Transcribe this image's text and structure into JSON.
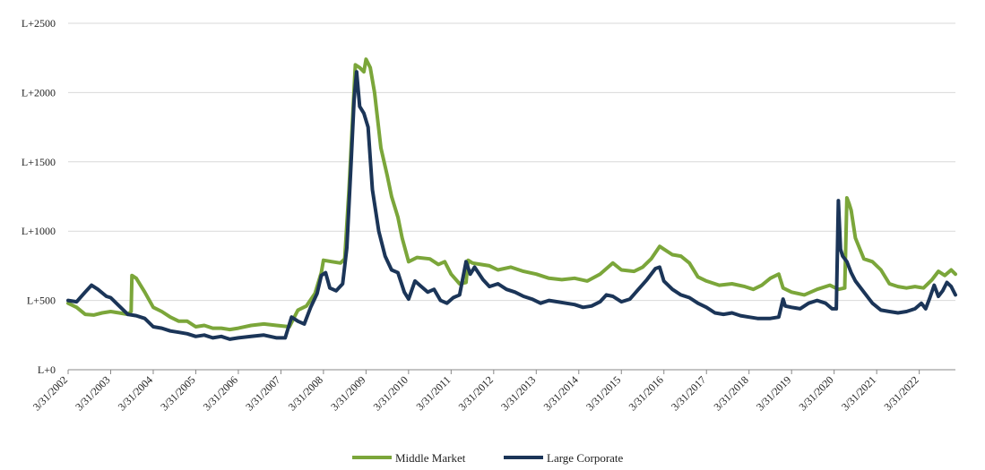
{
  "chart_data": {
    "type": "line",
    "title": "",
    "xlabel": "",
    "ylabel": "",
    "ylim": [
      0,
      2500
    ],
    "y_ticks": [
      {
        "value": 0,
        "label": "L+0"
      },
      {
        "value": 500,
        "label": "L+500"
      },
      {
        "value": 1000,
        "label": "L+1000"
      },
      {
        "value": 1500,
        "label": "L+1500"
      },
      {
        "value": 2000,
        "label": "L+2000"
      },
      {
        "value": 2500,
        "label": "L+2500"
      }
    ],
    "xlim": [
      2002.0,
      2022.85
    ],
    "x_tick_labels": [
      "3/31/2002",
      "3/31/2003",
      "3/31/2004",
      "3/31/2005",
      "3/31/2006",
      "3/31/2007",
      "3/31/2008",
      "3/31/2009",
      "3/31/2010",
      "3/31/2011",
      "3/31/2012",
      "3/31/2013",
      "3/31/2014",
      "3/31/2015",
      "3/31/2016",
      "3/31/2017",
      "3/31/2018",
      "3/31/2019",
      "3/31/2020",
      "3/31/2021",
      "3/31/2022"
    ],
    "grid": true,
    "legend": "bottom-center",
    "series": [
      {
        "name": "Middle Market",
        "color": "#7ba63a",
        "points": [
          [
            2002.0,
            480
          ],
          [
            2002.2,
            450
          ],
          [
            2002.4,
            400
          ],
          [
            2002.6,
            395
          ],
          [
            2002.8,
            410
          ],
          [
            2003.0,
            420
          ],
          [
            2003.2,
            410
          ],
          [
            2003.4,
            400
          ],
          [
            2003.48,
            420
          ],
          [
            2003.5,
            680
          ],
          [
            2003.6,
            660
          ],
          [
            2003.8,
            560
          ],
          [
            2004.0,
            450
          ],
          [
            2004.2,
            420
          ],
          [
            2004.4,
            380
          ],
          [
            2004.6,
            350
          ],
          [
            2004.8,
            350
          ],
          [
            2005.0,
            310
          ],
          [
            2005.2,
            320
          ],
          [
            2005.4,
            300
          ],
          [
            2005.6,
            300
          ],
          [
            2005.8,
            290
          ],
          [
            2006.0,
            300
          ],
          [
            2006.3,
            320
          ],
          [
            2006.6,
            330
          ],
          [
            2006.9,
            320
          ],
          [
            2007.2,
            310
          ],
          [
            2007.4,
            430
          ],
          [
            2007.6,
            460
          ],
          [
            2007.8,
            550
          ],
          [
            2007.95,
            700
          ],
          [
            2008.0,
            790
          ],
          [
            2008.2,
            780
          ],
          [
            2008.4,
            770
          ],
          [
            2008.5,
            800
          ],
          [
            2008.6,
            1300
          ],
          [
            2008.7,
            1900
          ],
          [
            2008.75,
            2200
          ],
          [
            2008.85,
            2180
          ],
          [
            2008.95,
            2150
          ],
          [
            2009.0,
            2240
          ],
          [
            2009.1,
            2180
          ],
          [
            2009.2,
            2000
          ],
          [
            2009.35,
            1600
          ],
          [
            2009.5,
            1400
          ],
          [
            2009.6,
            1250
          ],
          [
            2009.75,
            1100
          ],
          [
            2009.85,
            950
          ],
          [
            2010.0,
            780
          ],
          [
            2010.2,
            810
          ],
          [
            2010.5,
            800
          ],
          [
            2010.7,
            760
          ],
          [
            2010.85,
            780
          ],
          [
            2011.0,
            690
          ],
          [
            2011.2,
            620
          ],
          [
            2011.35,
            630
          ],
          [
            2011.4,
            790
          ],
          [
            2011.5,
            770
          ],
          [
            2011.7,
            760
          ],
          [
            2011.9,
            750
          ],
          [
            2012.1,
            720
          ],
          [
            2012.4,
            740
          ],
          [
            2012.7,
            710
          ],
          [
            2013.0,
            690
          ],
          [
            2013.3,
            660
          ],
          [
            2013.6,
            650
          ],
          [
            2013.9,
            660
          ],
          [
            2014.2,
            640
          ],
          [
            2014.5,
            690
          ],
          [
            2014.8,
            770
          ],
          [
            2015.0,
            720
          ],
          [
            2015.3,
            710
          ],
          [
            2015.5,
            740
          ],
          [
            2015.7,
            800
          ],
          [
            2015.9,
            890
          ],
          [
            2016.0,
            870
          ],
          [
            2016.2,
            830
          ],
          [
            2016.4,
            820
          ],
          [
            2016.6,
            770
          ],
          [
            2016.8,
            670
          ],
          [
            2017.0,
            640
          ],
          [
            2017.3,
            610
          ],
          [
            2017.6,
            620
          ],
          [
            2017.9,
            600
          ],
          [
            2018.1,
            580
          ],
          [
            2018.3,
            610
          ],
          [
            2018.5,
            660
          ],
          [
            2018.7,
            690
          ],
          [
            2018.8,
            590
          ],
          [
            2019.0,
            560
          ],
          [
            2019.3,
            540
          ],
          [
            2019.6,
            580
          ],
          [
            2019.9,
            610
          ],
          [
            2020.1,
            580
          ],
          [
            2020.25,
            590
          ],
          [
            2020.3,
            1240
          ],
          [
            2020.35,
            1200
          ],
          [
            2020.4,
            1150
          ],
          [
            2020.5,
            950
          ],
          [
            2020.7,
            800
          ],
          [
            2020.9,
            780
          ],
          [
            2021.1,
            720
          ],
          [
            2021.3,
            620
          ],
          [
            2021.5,
            600
          ],
          [
            2021.7,
            590
          ],
          [
            2021.9,
            600
          ],
          [
            2022.1,
            590
          ],
          [
            2022.3,
            650
          ],
          [
            2022.45,
            710
          ],
          [
            2022.6,
            680
          ],
          [
            2022.75,
            720
          ],
          [
            2022.85,
            690
          ]
        ]
      },
      {
        "name": "Large Corporate",
        "color": "#1b3558",
        "points": [
          [
            2002.0,
            500
          ],
          [
            2002.2,
            490
          ],
          [
            2002.4,
            560
          ],
          [
            2002.55,
            610
          ],
          [
            2002.7,
            580
          ],
          [
            2002.9,
            530
          ],
          [
            2003.0,
            520
          ],
          [
            2003.2,
            460
          ],
          [
            2003.4,
            400
          ],
          [
            2003.6,
            390
          ],
          [
            2003.8,
            370
          ],
          [
            2004.0,
            310
          ],
          [
            2004.2,
            300
          ],
          [
            2004.4,
            280
          ],
          [
            2004.6,
            270
          ],
          [
            2004.8,
            260
          ],
          [
            2005.0,
            240
          ],
          [
            2005.2,
            250
          ],
          [
            2005.4,
            230
          ],
          [
            2005.6,
            240
          ],
          [
            2005.8,
            220
          ],
          [
            2006.0,
            230
          ],
          [
            2006.3,
            240
          ],
          [
            2006.6,
            250
          ],
          [
            2006.9,
            230
          ],
          [
            2007.1,
            230
          ],
          [
            2007.25,
            380
          ],
          [
            2007.4,
            350
          ],
          [
            2007.55,
            330
          ],
          [
            2007.7,
            450
          ],
          [
            2007.85,
            550
          ],
          [
            2007.95,
            680
          ],
          [
            2008.05,
            700
          ],
          [
            2008.15,
            590
          ],
          [
            2008.3,
            570
          ],
          [
            2008.45,
            620
          ],
          [
            2008.55,
            880
          ],
          [
            2008.65,
            1500
          ],
          [
            2008.72,
            1950
          ],
          [
            2008.78,
            2150
          ],
          [
            2008.85,
            1900
          ],
          [
            2008.95,
            1850
          ],
          [
            2009.05,
            1750
          ],
          [
            2009.15,
            1300
          ],
          [
            2009.3,
            1000
          ],
          [
            2009.45,
            820
          ],
          [
            2009.6,
            720
          ],
          [
            2009.75,
            700
          ],
          [
            2009.9,
            560
          ],
          [
            2010.0,
            510
          ],
          [
            2010.15,
            640
          ],
          [
            2010.3,
            600
          ],
          [
            2010.45,
            560
          ],
          [
            2010.6,
            580
          ],
          [
            2010.75,
            500
          ],
          [
            2010.9,
            480
          ],
          [
            2011.05,
            520
          ],
          [
            2011.2,
            540
          ],
          [
            2011.35,
            780
          ],
          [
            2011.45,
            690
          ],
          [
            2011.55,
            740
          ],
          [
            2011.75,
            650
          ],
          [
            2011.9,
            600
          ],
          [
            2012.1,
            620
          ],
          [
            2012.3,
            580
          ],
          [
            2012.5,
            560
          ],
          [
            2012.7,
            530
          ],
          [
            2012.9,
            510
          ],
          [
            2013.1,
            480
          ],
          [
            2013.3,
            500
          ],
          [
            2013.5,
            490
          ],
          [
            2013.7,
            480
          ],
          [
            2013.9,
            470
          ],
          [
            2014.1,
            450
          ],
          [
            2014.3,
            460
          ],
          [
            2014.5,
            490
          ],
          [
            2014.65,
            540
          ],
          [
            2014.8,
            530
          ],
          [
            2015.0,
            490
          ],
          [
            2015.2,
            510
          ],
          [
            2015.4,
            580
          ],
          [
            2015.6,
            650
          ],
          [
            2015.8,
            730
          ],
          [
            2015.9,
            740
          ],
          [
            2016.0,
            640
          ],
          [
            2016.2,
            580
          ],
          [
            2016.4,
            540
          ],
          [
            2016.6,
            520
          ],
          [
            2016.8,
            480
          ],
          [
            2017.0,
            450
          ],
          [
            2017.2,
            410
          ],
          [
            2017.4,
            400
          ],
          [
            2017.6,
            410
          ],
          [
            2017.8,
            390
          ],
          [
            2018.0,
            380
          ],
          [
            2018.2,
            370
          ],
          [
            2018.5,
            370
          ],
          [
            2018.7,
            380
          ],
          [
            2018.8,
            510
          ],
          [
            2018.85,
            460
          ],
          [
            2019.0,
            450
          ],
          [
            2019.2,
            440
          ],
          [
            2019.4,
            480
          ],
          [
            2019.6,
            500
          ],
          [
            2019.8,
            480
          ],
          [
            2019.95,
            440
          ],
          [
            2020.05,
            440
          ],
          [
            2020.1,
            1220
          ],
          [
            2020.15,
            870
          ],
          [
            2020.2,
            820
          ],
          [
            2020.3,
            780
          ],
          [
            2020.4,
            700
          ],
          [
            2020.5,
            640
          ],
          [
            2020.7,
            560
          ],
          [
            2020.9,
            480
          ],
          [
            2021.1,
            430
          ],
          [
            2021.3,
            420
          ],
          [
            2021.5,
            410
          ],
          [
            2021.7,
            420
          ],
          [
            2021.9,
            440
          ],
          [
            2022.05,
            480
          ],
          [
            2022.15,
            440
          ],
          [
            2022.25,
            520
          ],
          [
            2022.35,
            610
          ],
          [
            2022.45,
            530
          ],
          [
            2022.55,
            570
          ],
          [
            2022.65,
            630
          ],
          [
            2022.75,
            600
          ],
          [
            2022.85,
            540
          ]
        ]
      }
    ]
  }
}
